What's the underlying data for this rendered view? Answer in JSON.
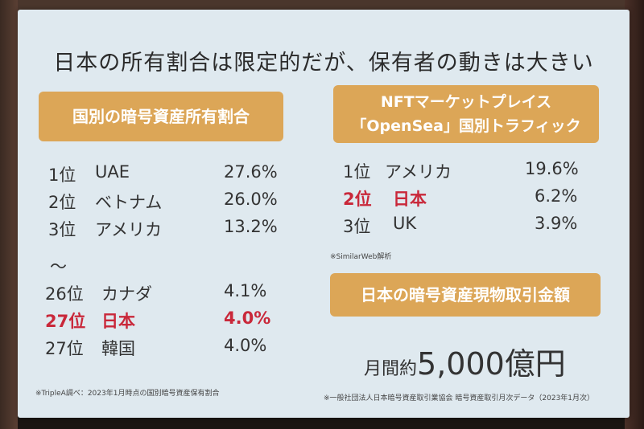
{
  "title": "日本の所有割合は限定的だが、保有者の動きは大きい",
  "left_panel": {
    "header": "国別の暗号資産所有割合",
    "rows": [
      {
        "rank": "1位",
        "name": "UAE",
        "pct": "27.6%"
      },
      {
        "rank": "2位",
        "name": "ベトナム",
        "pct": "26.0%"
      },
      {
        "rank": "3位",
        "name": "アメリカ",
        "pct": "13.2%"
      },
      {
        "rank": "26位",
        "name": "カナダ",
        "pct": "4.1%"
      },
      {
        "rank": "27位",
        "name": "日本",
        "pct": "4.0%"
      },
      {
        "rank": "27位",
        "name": "韓国",
        "pct": "4.0%"
      }
    ],
    "separator": "～",
    "footnote": "※TripleA調べ：2023年1月時点の国別暗号資産保有割合"
  },
  "right_panel": {
    "header_line1": "NFTマーケットプレイス",
    "header_line2": "「OpenSea」国別トラフィック",
    "rows": [
      {
        "rank": "1位",
        "name": "アメリカ",
        "pct": "19.6%"
      },
      {
        "rank": "2位",
        "name": "日本",
        "pct": "6.2%"
      },
      {
        "rank": "3位",
        "name": "UK",
        "pct": "3.9%"
      }
    ],
    "source": "※SimilarWeb解析",
    "amount_header": "日本の暗号資産現物取引金額",
    "amount_prefix": "月間約",
    "amount_value": "5,000億円",
    "footnote": "※一般社団法人日本暗号資産取引業協会 暗号資産取引月次データ（2023年1月次）"
  },
  "colors": {
    "slide_bg": "#dfe9ef",
    "pill": "#dca657",
    "highlight": "#c9283a"
  }
}
